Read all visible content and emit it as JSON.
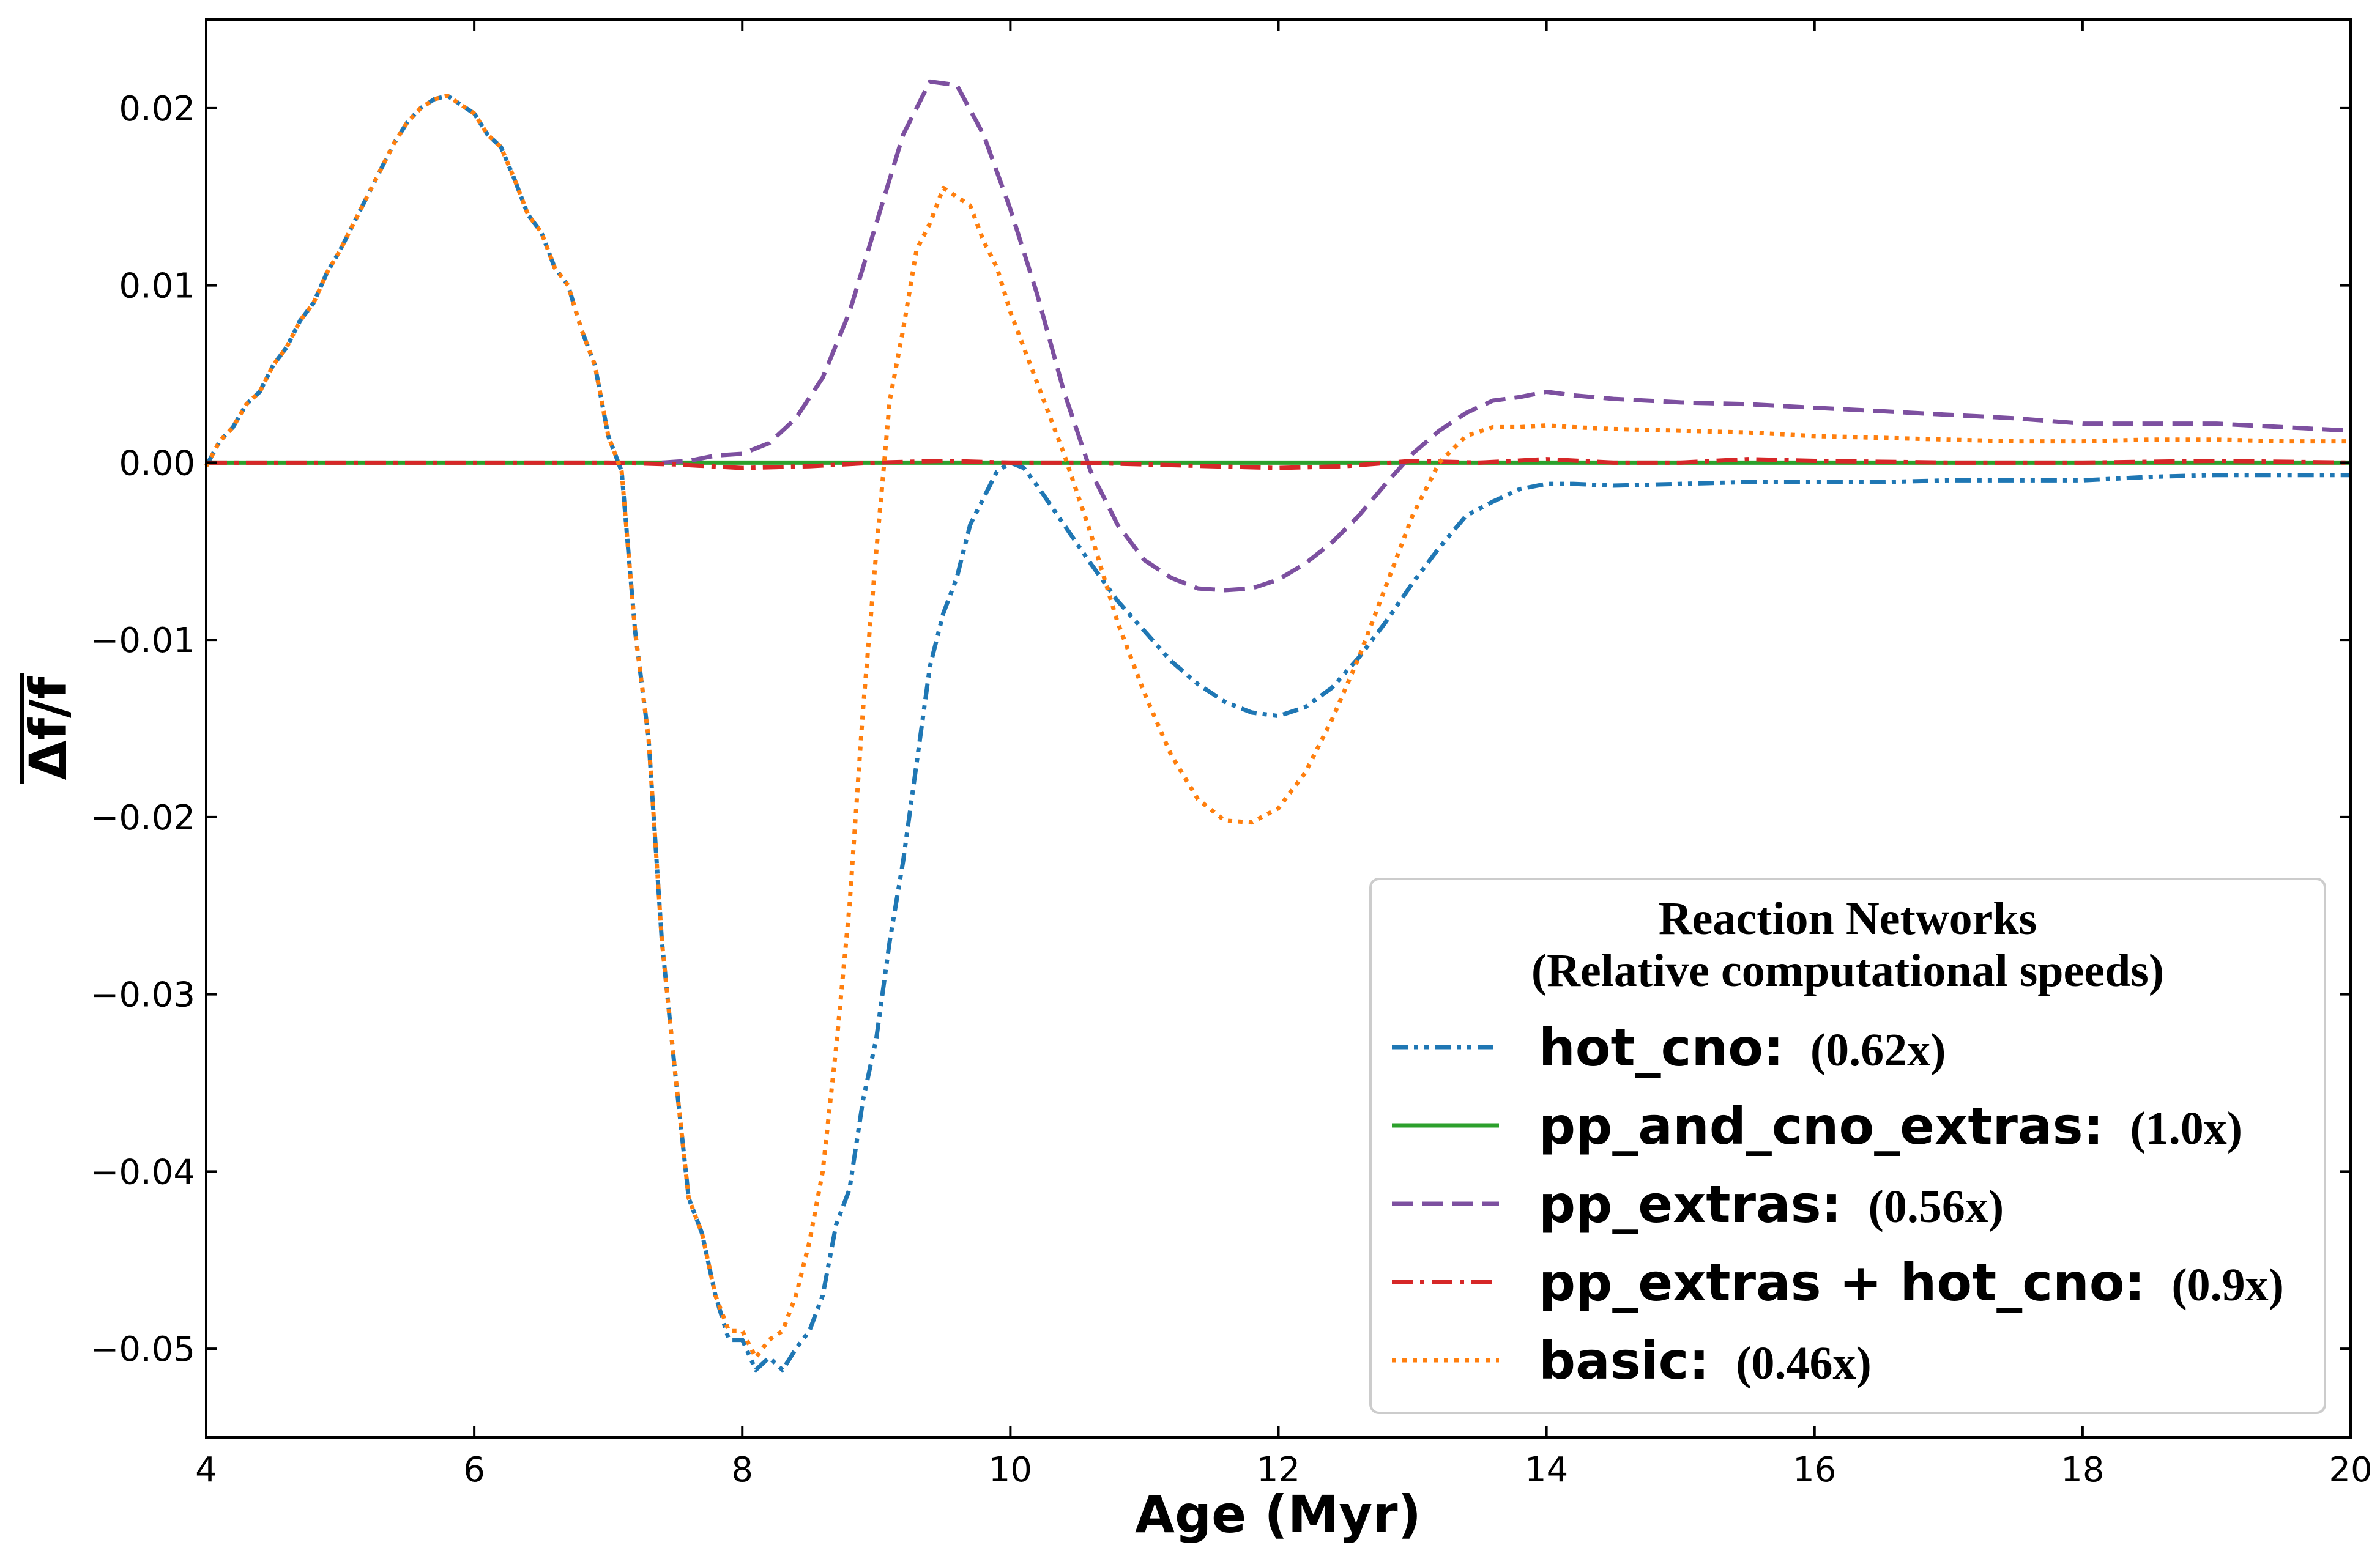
{
  "chart_data": {
    "type": "line",
    "xlabel": "Age (Myr)",
    "ylabel": "Δf/f",
    "xlim": [
      4,
      20
    ],
    "ylim": [
      -0.055,
      0.025
    ],
    "xticks": [
      4,
      6,
      8,
      10,
      12,
      14,
      16,
      18,
      20
    ],
    "xtick_labels": [
      "4",
      "6",
      "8",
      "10",
      "12",
      "14",
      "16",
      "18",
      "20"
    ],
    "yticks": [
      0.02,
      0.01,
      0.0,
      -0.01,
      -0.02,
      -0.03,
      -0.04,
      -0.05
    ],
    "ytick_labels": [
      "0.02",
      "0.01",
      "0.00",
      "−0.01",
      "−0.02",
      "−0.03",
      "−0.04",
      "−0.05"
    ],
    "grid": false,
    "legend": {
      "title_line1": "Reaction Networks",
      "title_line2": "(Relative computational speeds)",
      "placement": "lower-right"
    },
    "series": [
      {
        "name": "hot_cno",
        "speed": "(0.62x)",
        "color": "#1f77b4",
        "style": "dashdotdot",
        "x": [
          4.0,
          4.1,
          4.2,
          4.3,
          4.4,
          4.5,
          4.6,
          4.7,
          4.8,
          4.9,
          5.0,
          5.1,
          5.2,
          5.3,
          5.4,
          5.5,
          5.6,
          5.7,
          5.8,
          5.9,
          6.0,
          6.1,
          6.2,
          6.3,
          6.4,
          6.5,
          6.6,
          6.7,
          6.8,
          6.9,
          7.0,
          7.1,
          7.15,
          7.2,
          7.3,
          7.4,
          7.5,
          7.6,
          7.7,
          7.8,
          7.9,
          8.0,
          8.1,
          8.2,
          8.3,
          8.4,
          8.5,
          8.6,
          8.7,
          8.8,
          8.9,
          9.0,
          9.1,
          9.2,
          9.3,
          9.4,
          9.5,
          9.6,
          9.7,
          9.8,
          9.9,
          10.0,
          10.1,
          10.2,
          10.4,
          10.6,
          10.8,
          11.0,
          11.2,
          11.4,
          11.6,
          11.8,
          12.0,
          12.2,
          12.4,
          12.6,
          12.8,
          13.0,
          13.2,
          13.4,
          13.6,
          13.8,
          14.0,
          14.2,
          14.5,
          15.0,
          15.5,
          16.0,
          16.5,
          17.0,
          17.5,
          18.0,
          18.5,
          19.0,
          19.5,
          20.0
        ],
        "y": [
          -0.0002,
          0.0012,
          0.002,
          0.0033,
          0.004,
          0.0055,
          0.0065,
          0.008,
          0.009,
          0.0107,
          0.012,
          0.0135,
          0.015,
          0.0165,
          0.018,
          0.0192,
          0.02,
          0.0205,
          0.0207,
          0.0202,
          0.0197,
          0.0185,
          0.0178,
          0.016,
          0.014,
          0.013,
          0.011,
          0.01,
          0.0075,
          0.0055,
          0.0015,
          -0.0005,
          -0.005,
          -0.0095,
          -0.0155,
          -0.027,
          -0.0345,
          -0.0415,
          -0.0435,
          -0.047,
          -0.0495,
          -0.0495,
          -0.0512,
          -0.0505,
          -0.0512,
          -0.05,
          -0.049,
          -0.047,
          -0.043,
          -0.041,
          -0.036,
          -0.0325,
          -0.027,
          -0.0225,
          -0.017,
          -0.0115,
          -0.0085,
          -0.0065,
          -0.0035,
          -0.002,
          -0.0005,
          0.0,
          -0.0003,
          -0.0013,
          -0.0035,
          -0.0057,
          -0.0078,
          -0.0095,
          -0.0112,
          -0.0125,
          -0.0135,
          -0.0141,
          -0.0143,
          -0.0138,
          -0.0127,
          -0.011,
          -0.009,
          -0.0068,
          -0.0048,
          -0.003,
          -0.0022,
          -0.0015,
          -0.0012,
          -0.0012,
          -0.0013,
          -0.0012,
          -0.0011,
          -0.0011,
          -0.0011,
          -0.001,
          -0.001,
          -0.001,
          -0.0008,
          -0.0007,
          -0.0007,
          -0.0007
        ]
      },
      {
        "name": "pp_and_cno_extras",
        "speed": "(1.0x)",
        "color": "#2ca02c",
        "style": "solid",
        "x": [
          4.0,
          20.0
        ],
        "y": [
          0.0,
          0.0
        ]
      },
      {
        "name": "pp_extras",
        "speed": "(0.56x)",
        "color": "#7d50a0",
        "style": "dashed",
        "x": [
          7.4,
          7.6,
          7.8,
          8.0,
          8.2,
          8.4,
          8.6,
          8.8,
          9.0,
          9.2,
          9.4,
          9.6,
          9.8,
          10.0,
          10.2,
          10.4,
          10.6,
          10.8,
          11.0,
          11.2,
          11.4,
          11.6,
          11.8,
          12.0,
          12.2,
          12.4,
          12.6,
          12.8,
          13.0,
          13.2,
          13.4,
          13.6,
          13.8,
          14.0,
          14.2,
          14.5,
          15.0,
          15.5,
          16.0,
          16.5,
          17.0,
          17.5,
          18.0,
          18.5,
          19.0,
          19.5,
          20.0
        ],
        "y": [
          0.0,
          0.0001,
          0.0004,
          0.0005,
          0.0011,
          0.0025,
          0.0048,
          0.0085,
          0.0135,
          0.0185,
          0.0215,
          0.0213,
          0.0185,
          0.0143,
          0.0095,
          0.004,
          -0.0005,
          -0.0035,
          -0.0055,
          -0.0065,
          -0.0071,
          -0.0072,
          -0.0071,
          -0.0066,
          -0.0057,
          -0.0045,
          -0.003,
          -0.0012,
          0.0005,
          0.0018,
          0.0028,
          0.0035,
          0.0037,
          0.004,
          0.0038,
          0.0036,
          0.0034,
          0.0033,
          0.0031,
          0.0029,
          0.0027,
          0.0025,
          0.0022,
          0.0022,
          0.0022,
          0.002,
          0.0018
        ]
      },
      {
        "name": "pp_extras + hot_cno",
        "speed": "(0.9x)",
        "color": "#d62728",
        "style": "dashdot",
        "x": [
          4.0,
          6.0,
          7.0,
          7.5,
          8.0,
          8.5,
          9.0,
          9.5,
          10.0,
          10.5,
          11.0,
          11.5,
          12.0,
          12.5,
          13.0,
          13.5,
          14.0,
          14.5,
          15.0,
          15.5,
          16.0,
          17.0,
          18.0,
          19.0,
          20.0
        ],
        "y": [
          0.0,
          0.0,
          0.0,
          -0.0001,
          -0.0003,
          -0.0002,
          0.0,
          0.0001,
          0.0,
          0.0,
          -0.0001,
          -0.0002,
          -0.0003,
          -0.0002,
          0.0001,
          0.0,
          0.0002,
          0.0,
          0.0,
          0.0002,
          0.0001,
          0.0,
          0.0,
          0.0001,
          0.0
        ]
      },
      {
        "name": "basic",
        "speed": "(0.46x)",
        "color": "#ff7f0e",
        "style": "dotted",
        "x": [
          4.0,
          4.1,
          4.2,
          4.3,
          4.4,
          4.5,
          4.6,
          4.7,
          4.8,
          4.9,
          5.0,
          5.1,
          5.2,
          5.3,
          5.4,
          5.5,
          5.6,
          5.7,
          5.8,
          5.9,
          6.0,
          6.1,
          6.2,
          6.3,
          6.4,
          6.5,
          6.6,
          6.7,
          6.8,
          6.9,
          7.0,
          7.1,
          7.15,
          7.2,
          7.3,
          7.4,
          7.5,
          7.6,
          7.7,
          7.8,
          7.9,
          8.0,
          8.1,
          8.2,
          8.3,
          8.4,
          8.5,
          8.6,
          8.7,
          8.8,
          8.9,
          9.0,
          9.1,
          9.2,
          9.3,
          9.4,
          9.5,
          9.6,
          9.7,
          9.8,
          9.9,
          10.0,
          10.2,
          10.4,
          10.6,
          10.8,
          11.0,
          11.2,
          11.4,
          11.6,
          11.8,
          12.0,
          12.2,
          12.4,
          12.6,
          12.8,
          13.0,
          13.2,
          13.4,
          13.6,
          13.8,
          14.0,
          14.2,
          14.5,
          15.0,
          15.5,
          16.0,
          16.5,
          17.0,
          17.5,
          18.0,
          18.5,
          19.0,
          19.5,
          20.0
        ],
        "y": [
          -0.0002,
          0.0012,
          0.002,
          0.0033,
          0.004,
          0.0055,
          0.0065,
          0.008,
          0.009,
          0.0107,
          0.012,
          0.0135,
          0.015,
          0.0165,
          0.018,
          0.0192,
          0.02,
          0.0205,
          0.0207,
          0.0202,
          0.0197,
          0.0185,
          0.0178,
          0.016,
          0.014,
          0.013,
          0.011,
          0.01,
          0.0075,
          0.0055,
          0.0015,
          -0.0005,
          -0.005,
          -0.0095,
          -0.0155,
          -0.027,
          -0.0345,
          -0.0415,
          -0.0435,
          -0.047,
          -0.049,
          -0.049,
          -0.0505,
          -0.0495,
          -0.049,
          -0.047,
          -0.044,
          -0.04,
          -0.033,
          -0.025,
          -0.014,
          -0.005,
          0.0035,
          0.0075,
          0.012,
          0.0135,
          0.0155,
          0.015,
          0.0145,
          0.0125,
          0.011,
          0.0085,
          0.0045,
          0.0005,
          -0.004,
          -0.009,
          -0.013,
          -0.0165,
          -0.019,
          -0.0202,
          -0.0203,
          -0.0195,
          -0.0175,
          -0.0145,
          -0.011,
          -0.007,
          -0.003,
          0.0,
          0.0015,
          0.002,
          0.002,
          0.0021,
          0.002,
          0.0019,
          0.0018,
          0.0017,
          0.0015,
          0.0014,
          0.0013,
          0.0012,
          0.0012,
          0.0013,
          0.0013,
          0.0012,
          0.0012
        ]
      }
    ]
  }
}
